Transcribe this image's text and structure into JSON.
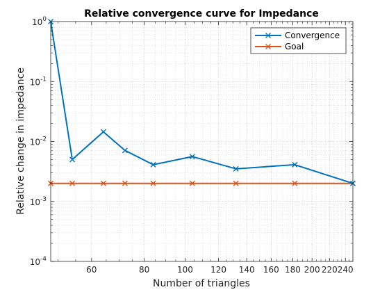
{
  "chart_data": {
    "type": "line",
    "title": "Relative convergence curve for Impedance",
    "xlabel": "Number of triangles",
    "ylabel": "Relative change in impedance",
    "x_scale": "log",
    "y_scale": "log",
    "xlim": [
      48,
      250
    ],
    "ylim": [
      0.0001,
      1
    ],
    "grid": true,
    "minor_grid": true,
    "legend_position": "top-right",
    "x_ticks": [
      60,
      80,
      100,
      120,
      140,
      160,
      180,
      200,
      220,
      240
    ],
    "y_ticks": [
      {
        "value": 0.0001,
        "base": "10",
        "exp": "-4"
      },
      {
        "value": 0.001,
        "base": "10",
        "exp": "-3"
      },
      {
        "value": 0.01,
        "base": "10",
        "exp": "-2"
      },
      {
        "value": 0.1,
        "base": "10",
        "exp": "-1"
      },
      {
        "value": 1,
        "base": "10",
        "exp": "0"
      }
    ],
    "series": [
      {
        "name": "Convergence",
        "color": "#0072BD",
        "marker": "x",
        "x": [
          48,
          54,
          64,
          72,
          84,
          104,
          132,
          182,
          250
        ],
        "y": [
          1.0,
          0.005,
          0.0145,
          0.0071,
          0.0041,
          0.0056,
          0.0035,
          0.0041,
          0.002
        ]
      },
      {
        "name": "Goal",
        "color": "#D95319",
        "marker": "x",
        "x": [
          48,
          54,
          64,
          72,
          84,
          104,
          132,
          182,
          250
        ],
        "y": [
          0.002,
          0.002,
          0.002,
          0.002,
          0.002,
          0.002,
          0.002,
          0.002,
          0.002
        ]
      }
    ]
  }
}
